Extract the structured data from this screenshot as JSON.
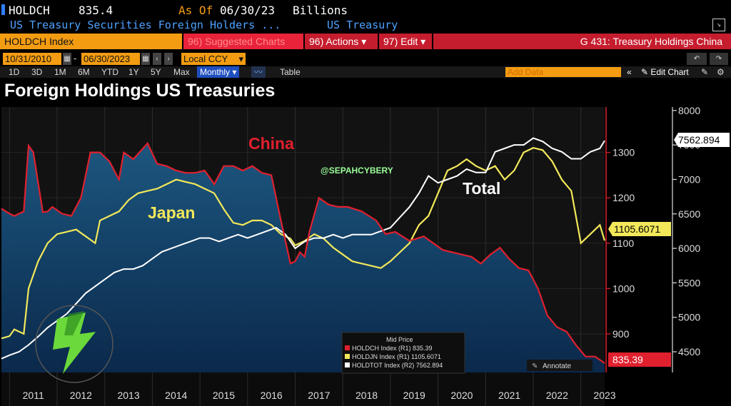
{
  "header": {
    "ticker": "HOLDCH",
    "value": "835.4",
    "as_of_label": "As Of",
    "as_of_date": "06/30/23",
    "units": "Billions",
    "description": "US Treasury Securities Foreign Holders ...",
    "source": "US Treasury"
  },
  "toolbar": {
    "index_label": "HOLDCH Index",
    "suggested_label": "96) Suggested Charts",
    "actions_label": "96) Actions",
    "edit_label": "97) Edit",
    "chart_id_label": "G 431: Treasury Holdings China"
  },
  "date_range": {
    "start": "10/31/2010",
    "end": "06/30/2023",
    "currency": "Local CCY"
  },
  "periods": [
    "1D",
    "3D",
    "1M",
    "6M",
    "YTD",
    "1Y",
    "5Y",
    "Max"
  ],
  "frequency": "Monthly",
  "table_label": "Table",
  "add_data_placeholder": "Add Data",
  "edit_chart_label": "Edit Chart",
  "watermark_text": "@SEPAHCYBERY",
  "legend": {
    "title": "Mid Price",
    "annotate_label": "Annotate"
  },
  "colors": {
    "china": "#e0202e",
    "japan": "#f2e85a",
    "total": "#ffffff",
    "bbg_orange": "#f39c12"
  },
  "chart_data": {
    "type": "line",
    "title": "Foreign Holdings US Treasuries",
    "xlabel": "",
    "ylabel": "",
    "x_ticks": [
      "2011",
      "2012",
      "2013",
      "2014",
      "2015",
      "2016",
      "2017",
      "2018",
      "2019",
      "2020",
      "2021",
      "2022",
      "2023"
    ],
    "xlim": [
      2010.83,
      2023.5
    ],
    "y_right1": {
      "ticks": [
        "900",
        "1000",
        "1100",
        "1200",
        "1300"
      ],
      "ylim": [
        815,
        1400
      ]
    },
    "y_right2": {
      "ticks": [
        "4500",
        "5000",
        "5500",
        "6000",
        "6500",
        "7000",
        "7500",
        "8000"
      ],
      "ylim": [
        4200,
        8050
      ]
    },
    "grid": true,
    "legend_position": "bottom-right",
    "series": [
      {
        "name": "China",
        "legend_label": "HOLDCH Index (R1) 835.39",
        "axis": "R1",
        "last_value": "835.39",
        "x": [
          2010.83,
          2011.0,
          2011.1,
          2011.3,
          2011.4,
          2011.5,
          2011.7,
          2011.8,
          2011.9,
          2012.1,
          2012.3,
          2012.5,
          2012.7,
          2012.9,
          2013.1,
          2013.3,
          2013.4,
          2013.6,
          2013.9,
          2014.1,
          2014.3,
          2014.5,
          2014.7,
          2014.9,
          2015.1,
          2015.3,
          2015.5,
          2015.7,
          2015.9,
          2016.1,
          2016.3,
          2016.5,
          2016.7,
          2016.9,
          2017.0,
          2017.1,
          2017.2,
          2017.3,
          2017.5,
          2017.7,
          2017.9,
          2018.1,
          2018.4,
          2018.7,
          2018.9,
          2019.1,
          2019.4,
          2019.7,
          2019.9,
          2020.1,
          2020.3,
          2020.5,
          2020.7,
          2020.9,
          2021.1,
          2021.3,
          2021.5,
          2021.7,
          2021.9,
          2022.1,
          2022.3,
          2022.5,
          2022.7,
          2022.9,
          2023.1,
          2023.3,
          2023.5
        ],
        "y": [
          1176,
          1165,
          1160,
          1170,
          1315,
          1300,
          1168,
          1170,
          1180,
          1165,
          1160,
          1200,
          1300,
          1300,
          1280,
          1240,
          1300,
          1285,
          1320,
          1275,
          1270,
          1260,
          1255,
          1255,
          1260,
          1230,
          1270,
          1270,
          1260,
          1270,
          1255,
          1250,
          1150,
          1055,
          1060,
          1080,
          1070,
          1125,
          1200,
          1185,
          1180,
          1180,
          1170,
          1150,
          1120,
          1125,
          1105,
          1115,
          1100,
          1085,
          1080,
          1075,
          1070,
          1055,
          1075,
          1090,
          1065,
          1045,
          1040,
          1000,
          940,
          915,
          905,
          875,
          850,
          850,
          835.39
        ]
      },
      {
        "name": "Japan",
        "legend_label": "HOLDJN Index (R1) 1105.6071",
        "axis": "R1",
        "last_value": "1105.6071",
        "x": [
          2010.83,
          2011.0,
          2011.1,
          2011.3,
          2011.4,
          2011.6,
          2011.8,
          2012.0,
          2012.2,
          2012.4,
          2012.6,
          2012.8,
          2012.9,
          2013.1,
          2013.3,
          2013.5,
          2013.7,
          2013.9,
          2014.1,
          2014.3,
          2014.5,
          2014.7,
          2014.9,
          2015.1,
          2015.3,
          2015.5,
          2015.7,
          2015.9,
          2016.1,
          2016.3,
          2016.5,
          2016.7,
          2016.9,
          2017.0,
          2017.2,
          2017.4,
          2017.6,
          2017.8,
          2018.0,
          2018.2,
          2018.4,
          2018.6,
          2018.8,
          2019.0,
          2019.2,
          2019.4,
          2019.6,
          2019.8,
          2020.0,
          2020.2,
          2020.4,
          2020.6,
          2020.8,
          2021.0,
          2021.2,
          2021.4,
          2021.6,
          2021.8,
          2022.0,
          2022.2,
          2022.4,
          2022.6,
          2022.8,
          2023.0,
          2023.2,
          2023.4,
          2023.5
        ],
        "y": [
          890,
          895,
          910,
          900,
          1000,
          1060,
          1100,
          1120,
          1125,
          1130,
          1115,
          1100,
          1150,
          1160,
          1170,
          1195,
          1210,
          1215,
          1220,
          1230,
          1240,
          1235,
          1230,
          1220,
          1210,
          1175,
          1145,
          1140,
          1150,
          1150,
          1140,
          1120,
          1110,
          1095,
          1105,
          1120,
          1110,
          1090,
          1075,
          1060,
          1055,
          1050,
          1045,
          1060,
          1080,
          1100,
          1140,
          1160,
          1210,
          1260,
          1270,
          1285,
          1270,
          1260,
          1270,
          1240,
          1260,
          1300,
          1310,
          1305,
          1280,
          1240,
          1215,
          1100,
          1120,
          1140,
          1105.6071
        ]
      },
      {
        "name": "Total",
        "legend_label": "HOLDTOT Index (R2) 7562.894",
        "axis": "R2",
        "last_value": "7562.894",
        "x": [
          2010.83,
          2011.0,
          2011.2,
          2011.4,
          2011.6,
          2011.8,
          2012.0,
          2012.2,
          2012.4,
          2012.6,
          2012.8,
          2013.0,
          2013.2,
          2013.4,
          2013.6,
          2013.8,
          2014.0,
          2014.2,
          2014.4,
          2014.6,
          2014.8,
          2015.0,
          2015.2,
          2015.4,
          2015.6,
          2015.8,
          2016.0,
          2016.2,
          2016.4,
          2016.6,
          2016.8,
          2017.0,
          2017.2,
          2017.4,
          2017.6,
          2017.8,
          2018.0,
          2018.2,
          2018.4,
          2018.6,
          2018.8,
          2019.0,
          2019.2,
          2019.4,
          2019.6,
          2019.8,
          2020.0,
          2020.2,
          2020.4,
          2020.6,
          2020.8,
          2021.0,
          2021.2,
          2021.4,
          2021.6,
          2021.8,
          2022.0,
          2022.2,
          2022.4,
          2022.6,
          2022.8,
          2023.0,
          2023.2,
          2023.4,
          2023.5
        ],
        "y": [
          4400,
          4450,
          4500,
          4600,
          4720,
          4850,
          4950,
          5050,
          5200,
          5350,
          5450,
          5550,
          5650,
          5700,
          5700,
          5750,
          5850,
          5950,
          6000,
          6050,
          6100,
          6150,
          6150,
          6100,
          6150,
          6200,
          6150,
          6200,
          6250,
          6300,
          6200,
          6000,
          6100,
          6150,
          6150,
          6200,
          6150,
          6200,
          6200,
          6200,
          6250,
          6300,
          6450,
          6600,
          6800,
          7050,
          6950,
          7000,
          7050,
          7150,
          7100,
          7100,
          7400,
          7450,
          7500,
          7500,
          7600,
          7550,
          7450,
          7400,
          7300,
          7300,
          7400,
          7450,
          7562.894
        ]
      }
    ]
  }
}
